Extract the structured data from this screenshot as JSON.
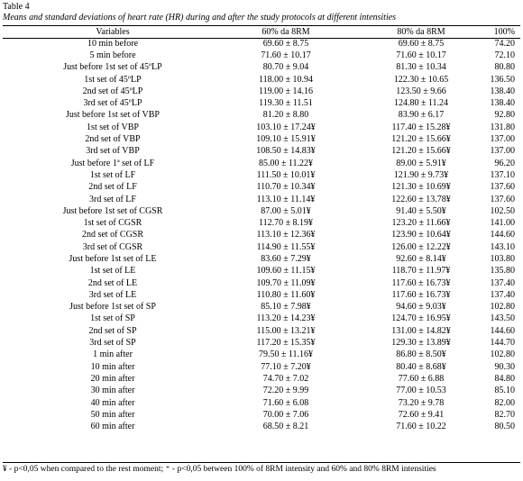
{
  "table_label": "Table 4",
  "caption": "Means and standard deviations of heart rate (HR) during and after the study protocols at different intensities",
  "columns": [
    "Variables",
    "60% da 8RM",
    "80% da 8RM",
    "100%"
  ],
  "rows": [
    [
      "10 min before",
      "69.60 ± 8.75",
      "69.60 ± 8.75",
      "74.20"
    ],
    [
      "5 min before",
      "71.60 ± 10.17",
      "71.60 ± 10.17",
      "72.10"
    ],
    [
      "Just before 1st set of 45ºLP",
      "80.70 ± 9.04",
      "81.30 ± 10.34",
      "80.80"
    ],
    [
      "1st set of 45ºLP",
      "118.00 ± 10.94",
      "122.30 ± 10.65",
      "136.50"
    ],
    [
      "2nd set of 45ºLP",
      "119.00 ± 14.16",
      "123.50 ± 9.66",
      "138.40"
    ],
    [
      "3rd set of 45ºLP",
      "119.30 ± 11.51",
      "124.80 ± 11.24",
      "138.40"
    ],
    [
      "Just before 1st set of VBP",
      "81.20 ± 8.80",
      "83.90 ± 6.17",
      "92.80"
    ],
    [
      "1st set of VBP",
      "103.10 ± 17.24¥",
      "117.40 ± 15.28¥",
      "131.80"
    ],
    [
      "2nd set of VBP",
      "109.10 ± 15.91¥",
      "121.20 ± 15.66¥",
      "137.00"
    ],
    [
      "3rd set of VBP",
      "108.50 ± 14.83¥",
      "121.20 ± 15.66¥",
      "137.00"
    ],
    [
      "Just before 1ª set of LF",
      "85.00 ± 11.22¥",
      "89.00 ± 5.91¥",
      "96.20"
    ],
    [
      "1st set of LF",
      "111.50 ± 10.01¥",
      "121.90 ± 9.73¥",
      "137.10"
    ],
    [
      "2nd set of LF",
      "110.70 ± 10.34¥",
      "121.30 ± 10.69¥",
      "137.60"
    ],
    [
      "3rd set of LF",
      "113.10 ± 11.14¥",
      "122.60 ± 13.78¥",
      "137.60"
    ],
    [
      "Just before 1st set of CGSR",
      "87.00 ± 5.01¥",
      "91.40 ± 5.50¥",
      "102.50"
    ],
    [
      "1st set of CGSR",
      "112.70 ± 8.19¥",
      "123.20 ± 11.66¥",
      "141.00"
    ],
    [
      "2nd set of CGSR",
      "113.10 ± 12.36¥",
      "123.90 ± 10.64¥",
      "144.60"
    ],
    [
      "3rd set of CGSR",
      "114.90 ± 11.55¥",
      "126.00 ± 12.22¥",
      "143.10"
    ],
    [
      "Just before 1st set of LE",
      "83.60 ± 7.29¥",
      "92.60 ± 8.14¥",
      "103.80"
    ],
    [
      "1st set of LE",
      "109.60 ± 11.15¥",
      "118.70 ± 11.97¥",
      "135.80"
    ],
    [
      "2nd set of LE",
      "109.70 ± 11.09¥",
      "117.60 ± 16.73¥",
      "137.40"
    ],
    [
      "3rd set of LE",
      "110.80 ± 11.60¥",
      "117.60 ± 16.73¥",
      "137.40"
    ],
    [
      "Just before 1st set of SP",
      "85.10 ± 7.98¥",
      "94.60 ± 9.03¥",
      "102.80"
    ],
    [
      "1st set of SP",
      "113.20 ± 14.23¥",
      "124.70 ± 16.95¥",
      "143.50"
    ],
    [
      "2nd set of SP",
      "115.00 ± 13.21¥",
      "131.00 ± 14.82¥",
      "144.60"
    ],
    [
      "3rd set of SP",
      "117.20 ± 15.35¥",
      "129.30 ± 13.89¥",
      "144.70"
    ],
    [
      "1 min after",
      "79.50 ± 11.16¥",
      "86.80 ± 8.50¥",
      "102.80"
    ],
    [
      "10 min after",
      "77.10 ± 7.20¥",
      "80.40 ± 8.68¥",
      "90.30"
    ],
    [
      "20 min after",
      "74.70 ± 7.02",
      "77.60 ± 6.88",
      "84.80"
    ],
    [
      "30 min after",
      "72.20 ± 9.99",
      "77.00 ± 10.53",
      "85.10"
    ],
    [
      "40 min after",
      "71.60 ± 6.08",
      "73.20 ± 9.78",
      "82.00"
    ],
    [
      "50 min after",
      "70.00 ± 7.06",
      "72.60 ± 9.41",
      "82.70"
    ],
    [
      "60 min after",
      "68.50 ± 8.21",
      "71.60 ± 10.22",
      "80.50"
    ]
  ],
  "footnote": "¥ - p<0,05 when compared to the rest moment; ⁺ - p<0,05 between 100% of 8RM intensity and 60% and 80% 8RM intensities"
}
